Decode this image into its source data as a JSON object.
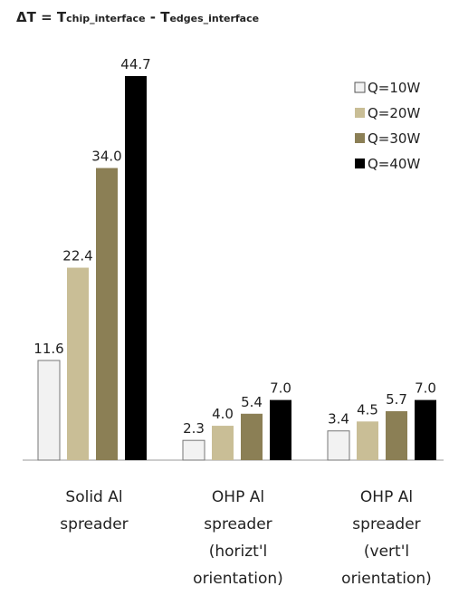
{
  "chart_data": {
    "type": "bar",
    "title": [
      "ΔT = T",
      "chip_interface",
      " - T",
      "edges_interface"
    ],
    "categories": [
      [
        "Solid Al",
        "spreader"
      ],
      [
        "OHP Al",
        "spreader",
        "(horizt'l",
        "orientation)"
      ],
      [
        "OHP Al",
        "spreader",
        "(vert'l",
        "orientation)"
      ]
    ],
    "series": [
      {
        "name": "Q=10W",
        "color": "#f2f2f2",
        "values": [
          11.6,
          2.3,
          3.4
        ],
        "value_labels": [
          "11.6",
          "2.3",
          "3.4"
        ]
      },
      {
        "name": "Q=20W",
        "color": "#c9be96",
        "values": [
          22.4,
          4.0,
          4.5
        ],
        "value_labels": [
          "22.4",
          "4.0",
          "4.5"
        ]
      },
      {
        "name": "Q=30W",
        "color": "#8b7f55",
        "values": [
          34.0,
          5.4,
          5.7
        ],
        "value_labels": [
          "34.0",
          "5.4",
          "5.7"
        ]
      },
      {
        "name": "Q=40W",
        "color": "#000000",
        "values": [
          44.7,
          7.0,
          7.0
        ],
        "value_labels": [
          "44.7",
          "7.0",
          "7.0"
        ]
      }
    ]
  }
}
